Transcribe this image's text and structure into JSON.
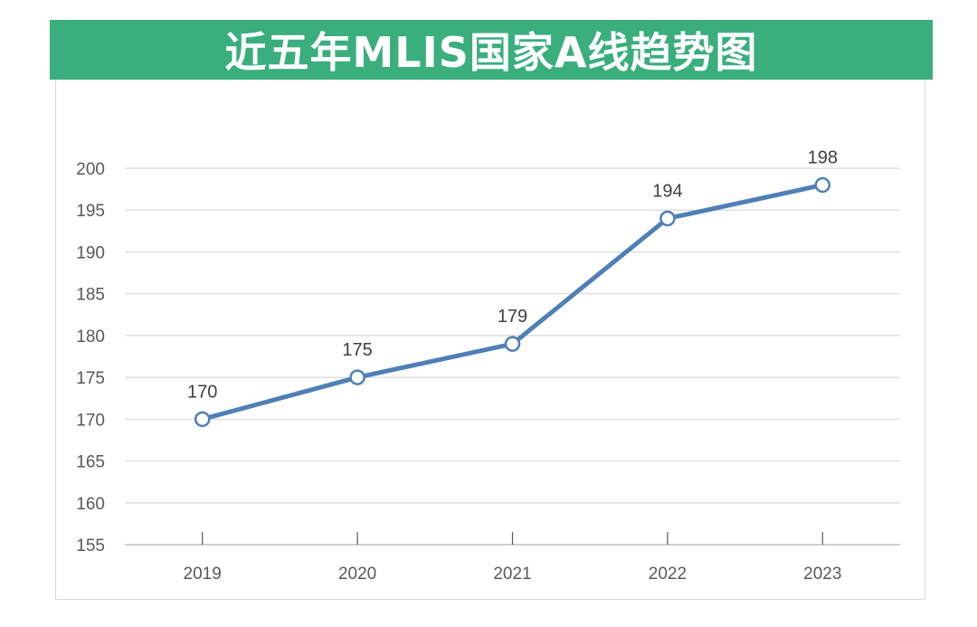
{
  "header": {
    "title": "近五年MLIS国家A线趋势图",
    "background_color": "#3aae7d"
  },
  "chart_data": {
    "type": "line",
    "title": "近五年MLIS国家A线趋势图",
    "categories": [
      "2019",
      "2020",
      "2021",
      "2022",
      "2023"
    ],
    "series": [
      {
        "values": [
          170,
          175,
          179,
          194,
          198
        ],
        "color": "#4f7fb5"
      }
    ],
    "data_labels": [
      "170",
      "175",
      "179",
      "194",
      "198"
    ],
    "y_ticks": [
      "155",
      "160",
      "165",
      "170",
      "175",
      "180",
      "185",
      "190",
      "195",
      "200"
    ],
    "ylim": [
      155,
      200
    ],
    "xlabel": "",
    "ylabel": "",
    "grid": true,
    "marker": "hollow-circle",
    "legend": "none"
  }
}
